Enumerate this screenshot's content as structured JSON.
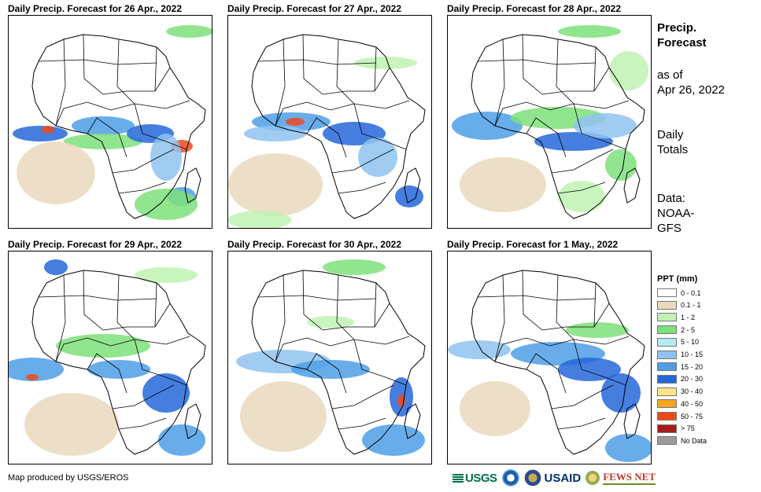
{
  "panels": [
    {
      "title": "Daily Precip. Forecast for 26 Apr., 2022"
    },
    {
      "title": "Daily Precip. Forecast for 27 Apr., 2022"
    },
    {
      "title": "Daily Precip. Forecast for 28 Apr., 2022"
    },
    {
      "title": "Daily Precip. Forecast for 29 Apr., 2022"
    },
    {
      "title": "Daily Precip. Forecast for 30 Apr., 2022"
    },
    {
      "title": "Daily Precip. Forecast for 1 May., 2022"
    }
  ],
  "sidebar": {
    "title_line1": "Precip.",
    "title_line2": "Forecast",
    "asof_line1": "as of",
    "asof_line2": "Apr 26, 2022",
    "totals_line1": "Daily",
    "totals_line2": "Totals",
    "data_line1": "Data:",
    "data_line2": "NOAA-",
    "data_line3": "GFS"
  },
  "legend": {
    "title": "PPT (mm)",
    "items": [
      {
        "label": "0 - 0.1",
        "color": "#ffffff"
      },
      {
        "label": "0.1 - 1",
        "color": "#ead9bd"
      },
      {
        "label": "1 - 2",
        "color": "#bff2b3"
      },
      {
        "label": "2 - 5",
        "color": "#7ee07a"
      },
      {
        "label": "5 - 10",
        "color": "#b3ecf5"
      },
      {
        "label": "10 - 15",
        "color": "#8fc3f0"
      },
      {
        "label": "15 - 20",
        "color": "#4f9de6"
      },
      {
        "label": "20 - 30",
        "color": "#2467d9"
      },
      {
        "label": "30 - 40",
        "color": "#fde48a"
      },
      {
        "label": "40 - 50",
        "color": "#f5a623"
      },
      {
        "label": "50 - 75",
        "color": "#f04a1a"
      },
      {
        "label": "> 75",
        "color": "#a51c1c"
      },
      {
        "label": "No Data",
        "color": "#9a9a9a"
      }
    ]
  },
  "credit": "Map produced by USGS/EROS",
  "logos": {
    "usgs": "USGS",
    "usaid": "USAID",
    "fews": "FEWS NET"
  }
}
